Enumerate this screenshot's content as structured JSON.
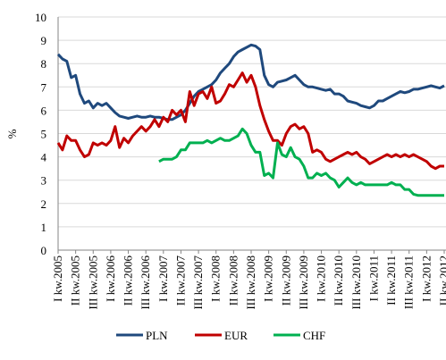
{
  "chart_data": {
    "type": "line",
    "y_label": "%",
    "categories": [
      "I kw.2005",
      null,
      null,
      null,
      "II kw.2005",
      null,
      null,
      null,
      "III kw.2005",
      null,
      null,
      null,
      "I kw.2006",
      null,
      null,
      null,
      "II kw.2006",
      null,
      null,
      null,
      "III kw.2006",
      null,
      null,
      null,
      "I kw.2007",
      null,
      null,
      null,
      "II kw.2007",
      null,
      null,
      null,
      "III kw.2007",
      null,
      null,
      null,
      "I kw.2008",
      null,
      null,
      null,
      "II kw.2008",
      null,
      null,
      null,
      "III kw.2008",
      null,
      null,
      null,
      "I kw.2009",
      null,
      null,
      null,
      "II kw.2009",
      null,
      null,
      null,
      "III kw.2009",
      null,
      null,
      null,
      "I kw.2010",
      null,
      null,
      null,
      "II kw.2010",
      null,
      null,
      null,
      "III kw.2010",
      null,
      null,
      null,
      "I kw.2011",
      null,
      null,
      null,
      "II kw.2011",
      null,
      null,
      null,
      "III kw.2011",
      null,
      null,
      null,
      "I kw.2012",
      null,
      null,
      null,
      "II kw.2012"
    ],
    "series": [
      {
        "name": "PLN",
        "color": "#1f497d",
        "values": [
          8.4,
          8.2,
          8.1,
          7.4,
          7.5,
          6.7,
          6.3,
          6.4,
          6.1,
          6.3,
          6.2,
          6.3,
          6.1,
          5.9,
          5.75,
          5.7,
          5.65,
          5.7,
          5.75,
          5.7,
          5.7,
          5.75,
          5.7,
          5.7,
          5.65,
          5.6,
          5.6,
          5.7,
          5.8,
          6.0,
          6.3,
          6.6,
          6.8,
          6.9,
          7.0,
          7.1,
          7.3,
          7.6,
          7.8,
          8.0,
          8.3,
          8.5,
          8.6,
          8.7,
          8.8,
          8.75,
          8.6,
          7.5,
          7.1,
          7.0,
          7.2,
          7.25,
          7.3,
          7.4,
          7.5,
          7.3,
          7.1,
          7.0,
          7.0,
          6.95,
          6.9,
          6.85,
          6.9,
          6.7,
          6.7,
          6.6,
          6.4,
          6.35,
          6.3,
          6.2,
          6.15,
          6.1,
          6.2,
          6.4,
          6.4,
          6.5,
          6.6,
          6.7,
          6.8,
          6.75,
          6.8,
          6.9,
          6.9,
          6.95,
          7.0,
          7.05,
          7.0,
          6.95,
          7.05
        ]
      },
      {
        "name": "EUR",
        "color": "#c00000",
        "values": [
          4.6,
          4.3,
          4.9,
          4.7,
          4.7,
          4.3,
          4.0,
          4.1,
          4.6,
          4.5,
          4.6,
          4.5,
          4.7,
          5.3,
          4.4,
          4.8,
          4.6,
          4.9,
          5.1,
          5.3,
          5.1,
          5.3,
          5.6,
          5.3,
          5.7,
          5.5,
          6.0,
          5.8,
          6.0,
          5.5,
          6.8,
          6.2,
          6.7,
          6.8,
          6.5,
          7.0,
          6.3,
          6.4,
          6.7,
          7.1,
          7.0,
          7.3,
          7.6,
          7.2,
          7.5,
          7.0,
          6.2,
          5.6,
          5.1,
          4.7,
          4.7,
          4.5,
          5.0,
          5.3,
          5.4,
          5.2,
          5.3,
          5.0,
          4.2,
          4.3,
          4.2,
          3.9,
          3.8,
          3.9,
          4.0,
          4.1,
          4.2,
          4.1,
          4.2,
          4.0,
          3.9,
          3.7,
          3.8,
          3.9,
          4.0,
          4.1,
          4.0,
          4.1,
          4.0,
          4.1,
          4.0,
          4.1,
          4.0,
          3.9,
          3.8,
          3.6,
          3.5,
          3.6,
          3.6
        ]
      },
      {
        "name": "CHF",
        "color": "#00b050",
        "values": [
          null,
          null,
          null,
          null,
          null,
          null,
          null,
          null,
          null,
          null,
          null,
          null,
          null,
          null,
          null,
          null,
          null,
          null,
          null,
          null,
          null,
          null,
          null,
          3.8,
          3.9,
          3.9,
          3.9,
          4.0,
          4.3,
          4.3,
          4.6,
          4.6,
          4.6,
          4.6,
          4.7,
          4.6,
          4.7,
          4.8,
          4.7,
          4.7,
          4.8,
          4.9,
          5.2,
          5.0,
          4.5,
          4.2,
          4.2,
          3.2,
          3.3,
          3.1,
          4.6,
          4.1,
          4.0,
          4.4,
          4.0,
          3.9,
          3.6,
          3.1,
          3.1,
          3.3,
          3.2,
          3.3,
          3.1,
          3.0,
          2.7,
          2.9,
          3.1,
          2.9,
          2.8,
          2.9,
          2.8,
          2.8,
          2.8,
          2.8,
          2.8,
          2.8,
          2.9,
          2.8,
          2.8,
          2.6,
          2.6,
          2.4,
          2.35,
          2.35,
          2.35,
          2.35,
          2.35,
          2.35,
          2.35
        ]
      }
    ],
    "ylim": [
      0,
      10
    ],
    "yticks": [
      0,
      1,
      2,
      3,
      4,
      5,
      6,
      7,
      8,
      9,
      10
    ],
    "grid": true,
    "legend": "bottom"
  }
}
